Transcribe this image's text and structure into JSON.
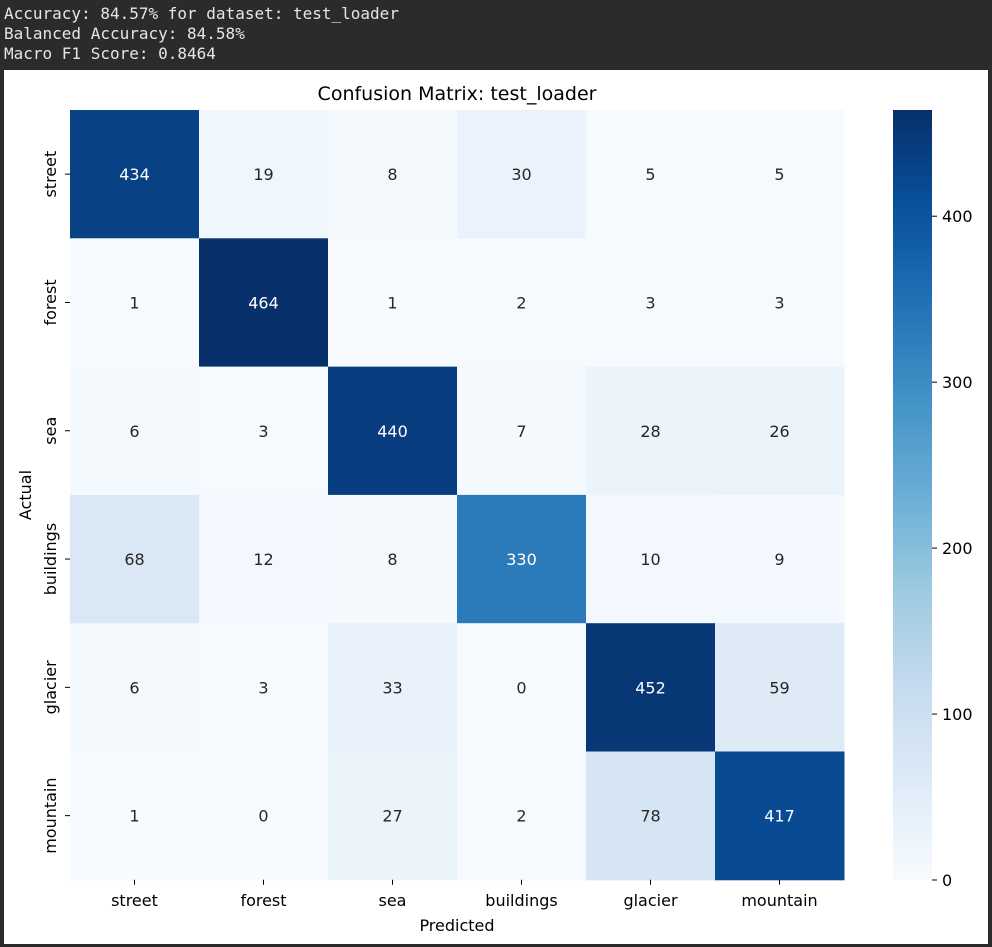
{
  "console": {
    "lines": [
      "Accuracy: 84.57% for dataset: test_loader",
      "Balanced Accuracy: 84.58%",
      "Macro F1 Score: 0.8464"
    ]
  },
  "chart_data": {
    "type": "heatmap",
    "title": "Confusion Matrix: test_loader",
    "xlabel": "Predicted",
    "ylabel": "Actual",
    "x_categories": [
      "street",
      "forest",
      "sea",
      "buildings",
      "glacier",
      "mountain"
    ],
    "y_categories": [
      "street",
      "forest",
      "sea",
      "buildings",
      "glacier",
      "mountain"
    ],
    "values": [
      [
        434,
        19,
        8,
        30,
        5,
        5
      ],
      [
        1,
        464,
        1,
        2,
        3,
        3
      ],
      [
        6,
        3,
        440,
        7,
        28,
        26
      ],
      [
        68,
        12,
        8,
        330,
        10,
        9
      ],
      [
        6,
        3,
        33,
        0,
        452,
        59
      ],
      [
        1,
        0,
        27,
        2,
        78,
        417
      ]
    ],
    "colormap": "Blues",
    "colorbar": {
      "vmin": 0,
      "vmax": 464,
      "ticks": [
        "0",
        "100",
        "200",
        "300",
        "400"
      ]
    },
    "annotation_colors": {
      "dark_text": "#262626",
      "light_text": "#ffffff"
    }
  }
}
